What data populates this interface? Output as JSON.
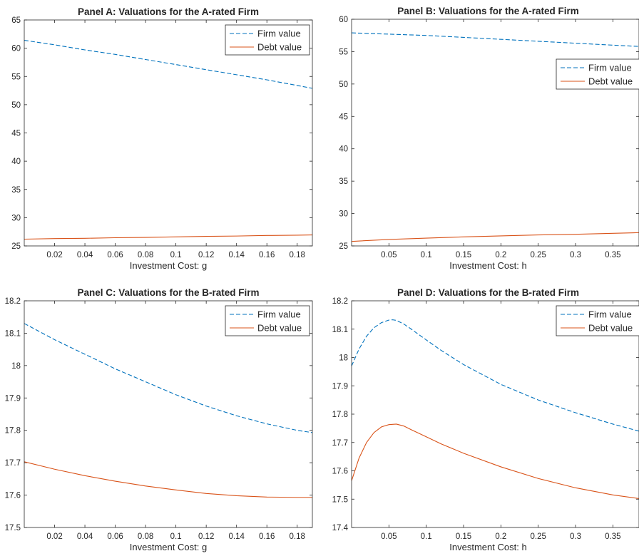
{
  "chart_data": [
    {
      "type": "line",
      "title": "Panel A: Valuations for the A-rated Firm",
      "xlabel": "Investment Cost: g",
      "ylabel": "",
      "xlim": [
        0.0,
        0.19
      ],
      "ylim": [
        25,
        65
      ],
      "xticks": [
        0.02,
        0.04,
        0.06,
        0.08,
        0.1,
        0.12,
        0.14,
        0.16,
        0.18
      ],
      "xtick_labels": [
        "0.02",
        "0.04",
        "0.06",
        "0.08",
        "0.1",
        "0.12",
        "0.14",
        "0.16",
        "0.18"
      ],
      "yticks": [
        25,
        30,
        35,
        40,
        45,
        50,
        55,
        60,
        65
      ],
      "ytick_labels": [
        "25",
        "30",
        "35",
        "40",
        "45",
        "50",
        "55",
        "60",
        "65"
      ],
      "legend": "top-right",
      "grid": false,
      "series": [
        {
          "name": "Firm value",
          "color": "#0072BD",
          "style": "dashed",
          "x": [
            0.0,
            0.02,
            0.04,
            0.06,
            0.08,
            0.1,
            0.12,
            0.14,
            0.16,
            0.18,
            0.19
          ],
          "y": [
            61.4,
            60.6,
            59.7,
            58.9,
            58.0,
            57.1,
            56.2,
            55.3,
            54.4,
            53.4,
            52.9
          ]
        },
        {
          "name": "Debt value",
          "color": "#D95319",
          "style": "solid",
          "x": [
            0.0,
            0.02,
            0.04,
            0.06,
            0.08,
            0.1,
            0.12,
            0.14,
            0.16,
            0.18,
            0.19
          ],
          "y": [
            26.2,
            26.3,
            26.35,
            26.45,
            26.5,
            26.6,
            26.7,
            26.75,
            26.85,
            26.9,
            26.95
          ]
        }
      ]
    },
    {
      "type": "line",
      "title": "Panel B: Valuations for the A-rated Firm",
      "xlabel": "Investment Cost: h",
      "ylabel": "",
      "xlim": [
        0.0,
        0.385
      ],
      "ylim": [
        25,
        60
      ],
      "xticks": [
        0.05,
        0.1,
        0.15,
        0.2,
        0.25,
        0.3,
        0.35
      ],
      "xtick_labels": [
        "0.05",
        "0.1",
        "0.15",
        "0.2",
        "0.25",
        "0.3",
        "0.35"
      ],
      "yticks": [
        25,
        30,
        35,
        40,
        45,
        50,
        55,
        60
      ],
      "ytick_labels": [
        "25",
        "30",
        "35",
        "40",
        "45",
        "50",
        "55",
        "60"
      ],
      "legend": "right",
      "grid": false,
      "series": [
        {
          "name": "Firm value",
          "color": "#0072BD",
          "style": "dashed",
          "x": [
            0.0,
            0.05,
            0.1,
            0.15,
            0.2,
            0.25,
            0.3,
            0.35,
            0.385
          ],
          "y": [
            57.9,
            57.7,
            57.5,
            57.2,
            56.9,
            56.6,
            56.3,
            56.0,
            55.8
          ]
        },
        {
          "name": "Debt value",
          "color": "#D95319",
          "style": "solid",
          "x": [
            0.0,
            0.05,
            0.1,
            0.15,
            0.2,
            0.25,
            0.3,
            0.35,
            0.385
          ],
          "y": [
            25.7,
            26.0,
            26.2,
            26.4,
            26.55,
            26.7,
            26.8,
            26.95,
            27.05
          ]
        }
      ]
    },
    {
      "type": "line",
      "title": "Panel C: Valuations for the B-rated Firm",
      "xlabel": "Investment Cost: g",
      "ylabel": "",
      "xlim": [
        0.0,
        0.19
      ],
      "ylim": [
        17.5,
        18.2
      ],
      "xticks": [
        0.02,
        0.04,
        0.06,
        0.08,
        0.1,
        0.12,
        0.14,
        0.16,
        0.18
      ],
      "xtick_labels": [
        "0.02",
        "0.04",
        "0.06",
        "0.08",
        "0.1",
        "0.12",
        "0.14",
        "0.16",
        "0.18"
      ],
      "yticks": [
        17.5,
        17.6,
        17.7,
        17.8,
        17.9,
        18,
        18.1,
        18.2
      ],
      "ytick_labels": [
        "17.5",
        "17.6",
        "17.7",
        "17.8",
        "17.9",
        "18",
        "18.1",
        "18.2"
      ],
      "legend": "top-right",
      "grid": false,
      "series": [
        {
          "name": "Firm value",
          "color": "#0072BD",
          "style": "dashed",
          "x": [
            0.0,
            0.02,
            0.04,
            0.06,
            0.08,
            0.1,
            0.12,
            0.14,
            0.16,
            0.18,
            0.19
          ],
          "y": [
            18.13,
            18.08,
            18.035,
            17.99,
            17.95,
            17.91,
            17.875,
            17.845,
            17.82,
            17.8,
            17.793
          ]
        },
        {
          "name": "Debt value",
          "color": "#D95319",
          "style": "solid",
          "x": [
            0.0,
            0.02,
            0.04,
            0.06,
            0.08,
            0.1,
            0.12,
            0.14,
            0.16,
            0.18,
            0.19
          ],
          "y": [
            17.703,
            17.68,
            17.66,
            17.643,
            17.628,
            17.616,
            17.605,
            17.598,
            17.594,
            17.593,
            17.593
          ]
        }
      ]
    },
    {
      "type": "line",
      "title": "Panel D: Valuations for the B-rated Firm",
      "xlabel": "Investment Cost: h",
      "ylabel": "",
      "xlim": [
        0.0,
        0.385
      ],
      "ylim": [
        17.4,
        18.2
      ],
      "xticks": [
        0.05,
        0.1,
        0.15,
        0.2,
        0.25,
        0.3,
        0.35
      ],
      "xtick_labels": [
        "0.05",
        "0.1",
        "0.15",
        "0.2",
        "0.25",
        "0.3",
        "0.35"
      ],
      "yticks": [
        17.4,
        17.5,
        17.6,
        17.7,
        17.8,
        17.9,
        18,
        18.1,
        18.2
      ],
      "ytick_labels": [
        "17.4",
        "17.5",
        "17.6",
        "17.7",
        "17.8",
        "17.9",
        "18",
        "18.1",
        "18.2"
      ],
      "legend": "top-right",
      "grid": false,
      "series": [
        {
          "name": "Firm value",
          "color": "#0072BD",
          "style": "dashed",
          "x": [
            0.0,
            0.01,
            0.02,
            0.03,
            0.04,
            0.05,
            0.055,
            0.06,
            0.07,
            0.08,
            0.1,
            0.12,
            0.15,
            0.2,
            0.25,
            0.3,
            0.35,
            0.385
          ],
          "y": [
            17.97,
            18.03,
            18.075,
            18.105,
            18.123,
            18.132,
            18.133,
            18.131,
            18.118,
            18.1,
            18.062,
            18.025,
            17.975,
            17.905,
            17.85,
            17.805,
            17.765,
            17.74
          ]
        },
        {
          "name": "Debt value",
          "color": "#D95319",
          "style": "solid",
          "x": [
            0.0,
            0.01,
            0.02,
            0.03,
            0.04,
            0.05,
            0.06,
            0.07,
            0.08,
            0.1,
            0.12,
            0.15,
            0.2,
            0.25,
            0.3,
            0.35,
            0.385
          ],
          "y": [
            17.565,
            17.645,
            17.7,
            17.735,
            17.755,
            17.763,
            17.765,
            17.758,
            17.745,
            17.72,
            17.695,
            17.662,
            17.614,
            17.573,
            17.54,
            17.515,
            17.502
          ]
        }
      ]
    }
  ]
}
